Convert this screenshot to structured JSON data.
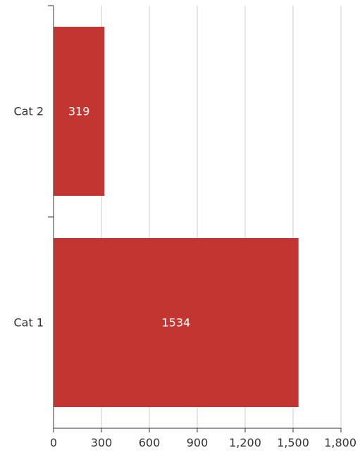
{
  "chart_data": {
    "type": "bar",
    "orientation": "horizontal",
    "categories": [
      "Cat 1",
      "Cat 2"
    ],
    "values": [
      1534,
      319
    ],
    "data_labels": [
      "1534",
      "319"
    ],
    "xlim": [
      0,
      1800
    ],
    "x_ticks": [
      0,
      300,
      600,
      900,
      1200,
      1500,
      1800
    ],
    "x_tick_labels": [
      "0",
      "300",
      "600",
      "900",
      "1,200",
      "1,500",
      "1,800"
    ],
    "grid": "vertical",
    "legend": "none",
    "bar_color": "#c23531",
    "grid_color": "#cccccc",
    "axis_color": "#333333"
  }
}
